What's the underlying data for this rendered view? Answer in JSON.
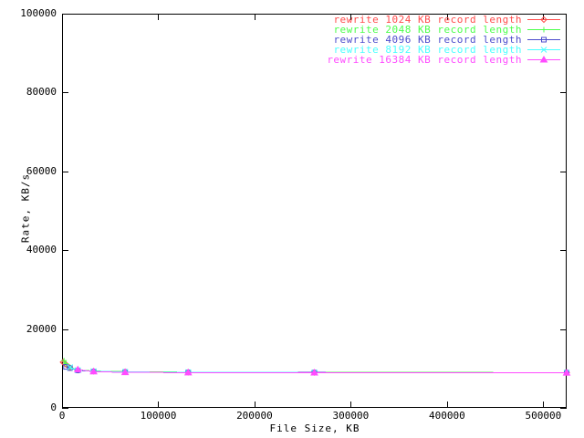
{
  "chart_data": {
    "type": "line",
    "title": "",
    "xlabel": "File Size, KB",
    "ylabel": "Rate, KB/s",
    "xlim": [
      0,
      524288
    ],
    "ylim": [
      0,
      100000
    ],
    "grid": false,
    "legend_position": "top-right-inside",
    "background_color": "#ffffff",
    "axis_color": "#000000",
    "x_ticks": {
      "values": [
        0,
        100000,
        200000,
        300000,
        400000,
        500000
      ],
      "labels": [
        "0",
        "100000",
        "200000",
        "300000",
        "400000",
        "500000"
      ]
    },
    "y_ticks": {
      "values": [
        0,
        20000,
        40000,
        60000,
        80000,
        100000
      ],
      "labels": [
        "0",
        "20000",
        "40000",
        "60000",
        "80000",
        "100000"
      ]
    },
    "series": [
      {
        "name": "rewrite 1024 KB record length",
        "color": "#ff4c4c",
        "marker": "diamond-open",
        "x": [
          1024,
          2048,
          4096,
          8192,
          16384,
          32768,
          65536,
          131072,
          262144,
          524288
        ],
        "y": [
          11600,
          11400,
          11000,
          10200,
          9600,
          9300,
          9150,
          9050,
          8980,
          8950
        ]
      },
      {
        "name": "rewrite 2048 KB record length",
        "color": "#4cff4c",
        "marker": "plus",
        "x": [
          2048,
          4096,
          8192,
          16384,
          32768,
          65536,
          131072,
          262144,
          524288
        ],
        "y": [
          12000,
          11200,
          10300,
          9650,
          9350,
          9200,
          9060,
          8990,
          8960
        ]
      },
      {
        "name": "rewrite 4096 KB record length",
        "color": "#4d4dcc",
        "marker": "square-open",
        "x": [
          4096,
          8192,
          16384,
          32768,
          65536,
          131072,
          262144,
          524288
        ],
        "y": [
          10400,
          10100,
          9500,
          9250,
          9100,
          9020,
          8970,
          8940
        ]
      },
      {
        "name": "rewrite 8192 KB record length",
        "color": "#4cffff",
        "marker": "x-cross",
        "x": [
          8192,
          16384,
          32768,
          65536,
          131072,
          262144,
          524288
        ],
        "y": [
          10300,
          9550,
          9300,
          9120,
          9030,
          8960,
          8930
        ]
      },
      {
        "name": "rewrite 16384 KB record length",
        "color": "#ff4cff",
        "marker": "triangle-filled",
        "x": [
          16384,
          32768,
          65536,
          131072,
          262144,
          524288
        ],
        "y": [
          9700,
          9200,
          9000,
          8950,
          8900,
          8880
        ]
      }
    ]
  }
}
